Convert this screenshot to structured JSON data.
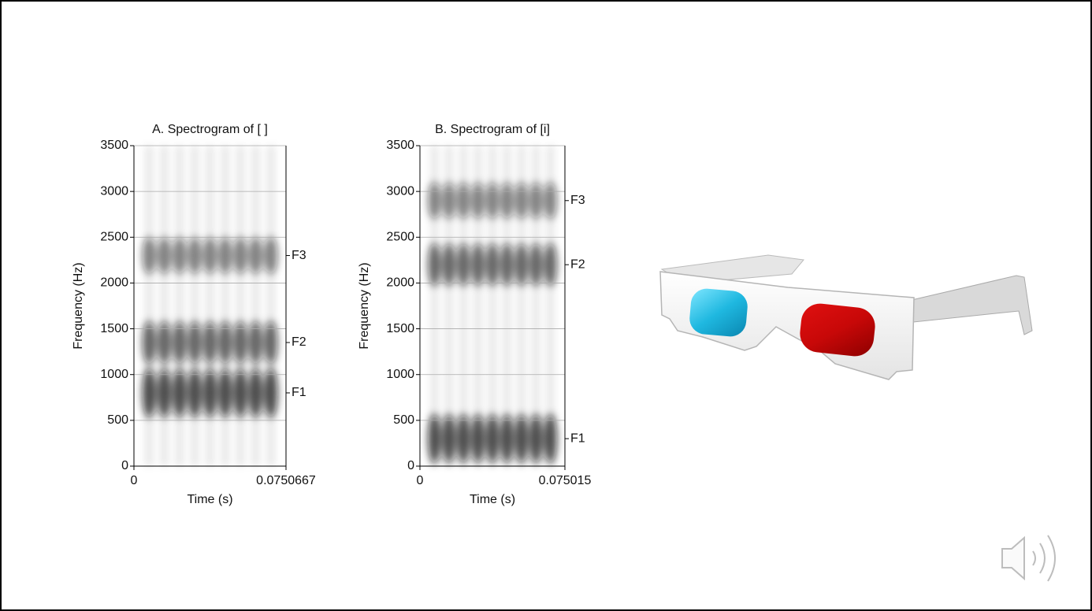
{
  "chart_data": [
    {
      "type": "spectrogram",
      "title": "A. Spectrogram of [  ]",
      "xlabel": "Time (s)",
      "ylabel": "Frequency (Hz)",
      "xlim": [
        0,
        0.0750667
      ],
      "xticks": [
        0,
        0.0750667
      ],
      "ylim": [
        0,
        3500
      ],
      "yticks": [
        0,
        500,
        1000,
        1500,
        2000,
        2500,
        3000,
        3500
      ],
      "grid": true,
      "formants": [
        {
          "label": "F1",
          "value": 800
        },
        {
          "label": "F2",
          "value": 1350
        },
        {
          "label": "F3",
          "value": 2300
        }
      ]
    },
    {
      "type": "spectrogram",
      "title": "B. Spectrogram of [i]",
      "xlabel": "Time (s)",
      "ylabel": "Frequency (Hz)",
      "xlim": [
        0,
        0.075015
      ],
      "xticks": [
        0,
        0.075015
      ],
      "ylim": [
        0,
        3500
      ],
      "yticks": [
        0,
        500,
        1000,
        1500,
        2000,
        2500,
        3000,
        3500
      ],
      "grid": true,
      "formants": [
        {
          "label": "F1",
          "value": 300
        },
        {
          "label": "F2",
          "value": 2200
        },
        {
          "label": "F3",
          "value": 2900
        }
      ]
    }
  ]
}
